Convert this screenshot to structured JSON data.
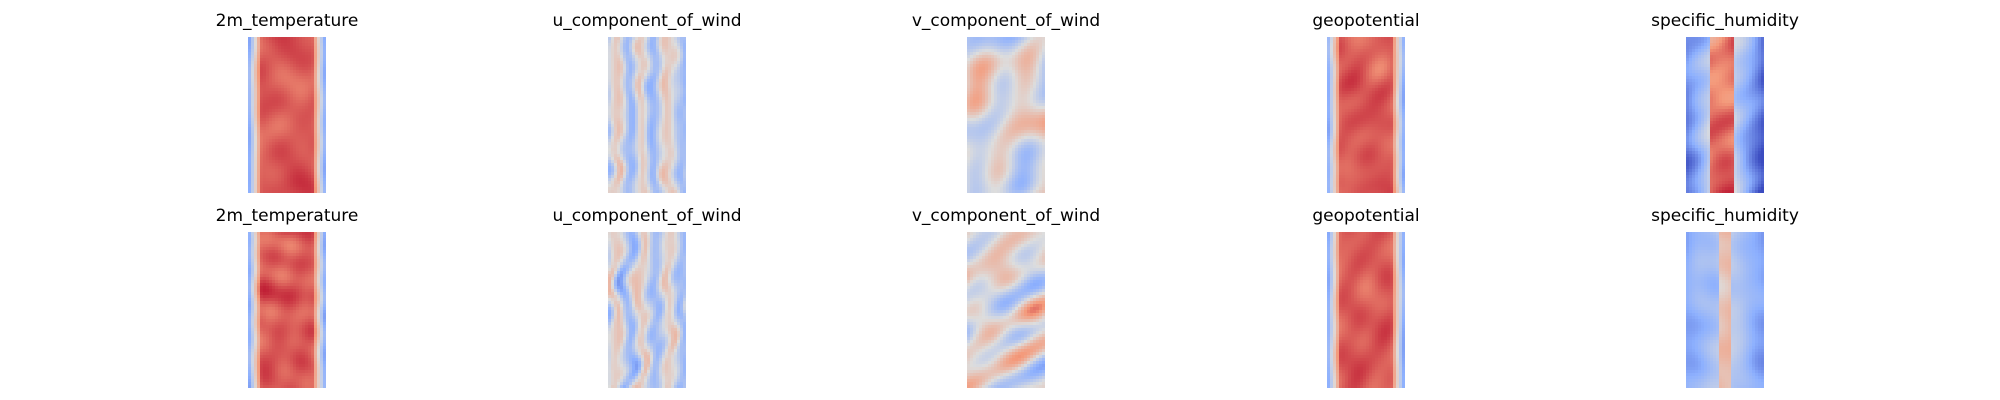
{
  "chart_data": [
    {
      "type": "heatmap",
      "title": "2m_temperature",
      "colormap": "coolwarm",
      "axes": "off",
      "row": 1,
      "pattern": "warm_core"
    },
    {
      "type": "heatmap",
      "title": "u_component_of_wind",
      "colormap": "coolwarm",
      "axes": "off",
      "row": 1,
      "pattern": "streaks"
    },
    {
      "type": "heatmap",
      "title": "v_component_of_wind",
      "colormap": "coolwarm",
      "axes": "off",
      "row": 1,
      "pattern": "eddies"
    },
    {
      "type": "heatmap",
      "title": "geopotential",
      "colormap": "coolwarm",
      "axes": "off",
      "row": 1,
      "pattern": "warm_core"
    },
    {
      "type": "heatmap",
      "title": "specific_humidity",
      "colormap": "coolwarm",
      "axes": "off",
      "row": 1,
      "pattern": "narrow_core"
    },
    {
      "type": "heatmap",
      "title": "2m_temperature",
      "colormap": "coolwarm",
      "axes": "off",
      "row": 2,
      "pattern": "warm_core"
    },
    {
      "type": "heatmap",
      "title": "u_component_of_wind",
      "colormap": "coolwarm",
      "axes": "off",
      "row": 2,
      "pattern": "streaks"
    },
    {
      "type": "heatmap",
      "title": "v_component_of_wind",
      "colormap": "coolwarm",
      "axes": "off",
      "row": 2,
      "pattern": "eddies"
    },
    {
      "type": "heatmap",
      "title": "geopotential",
      "colormap": "coolwarm",
      "axes": "off",
      "row": 2,
      "pattern": "warm_core"
    },
    {
      "type": "heatmap",
      "title": "specific_humidity",
      "colormap": "coolwarm",
      "axes": "off",
      "row": 2,
      "pattern": "narrow_core_faint"
    }
  ]
}
